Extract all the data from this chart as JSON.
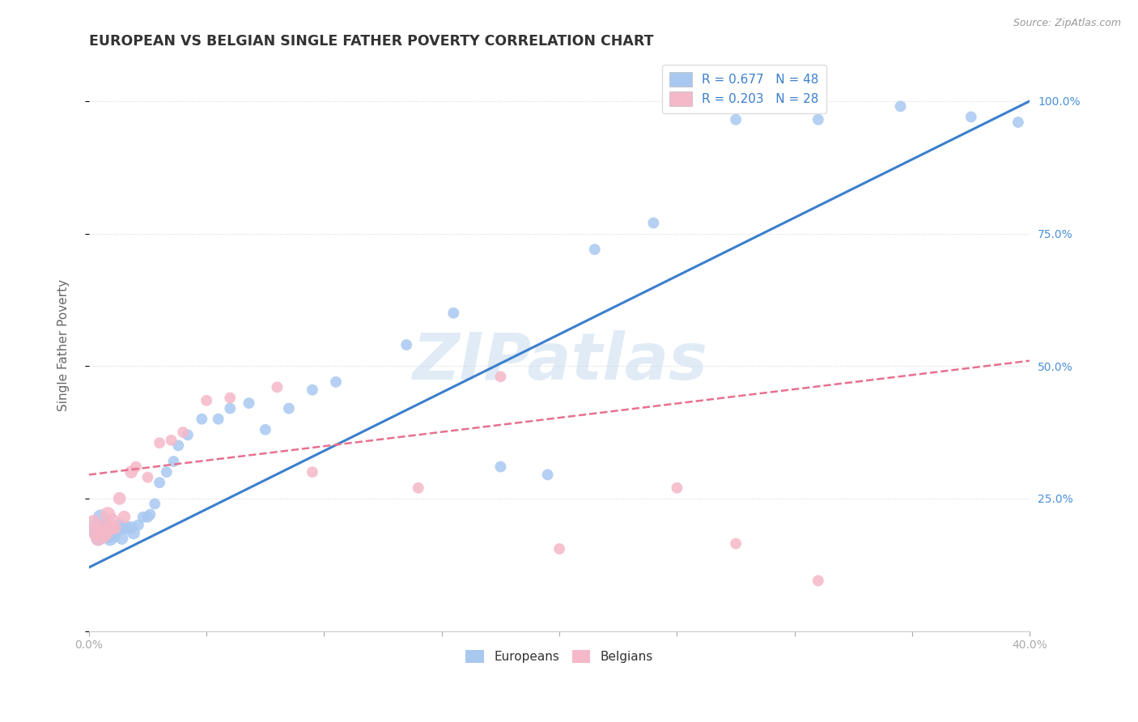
{
  "title": "EUROPEAN VS BELGIAN SINGLE FATHER POVERTY CORRELATION CHART",
  "source": "Source: ZipAtlas.com",
  "ylabel": "Single Father Poverty",
  "ytick_vals": [
    0.0,
    0.25,
    0.5,
    0.75,
    1.0
  ],
  "ytick_labels": [
    "",
    "25.0%",
    "50.0%",
    "75.0%",
    "100.0%"
  ],
  "xtick_vals": [
    0.0,
    0.05,
    0.1,
    0.15,
    0.2,
    0.25,
    0.3,
    0.35,
    0.4
  ],
  "xtick_labels": [
    "0.0%",
    "",
    "",
    "",
    "",
    "",
    "",
    "",
    "40.0%"
  ],
  "xlim": [
    0.0,
    0.4
  ],
  "ylim": [
    0.0,
    1.08
  ],
  "european_R": 0.677,
  "european_N": 48,
  "belgian_R": 0.203,
  "belgian_N": 28,
  "european_color": "#A8C8F0",
  "belgian_color": "#F5B8C8",
  "european_line_color": "#3B7FCC",
  "belgian_line_color": "#E87090",
  "legend_label_european": "R = 0.677   N = 48",
  "legend_label_belgian": "R = 0.203   N = 28",
  "legend_bottom_european": "Europeans",
  "legend_bottom_belgian": "Belgians",
  "european_x": [
    0.002,
    0.003,
    0.004,
    0.005,
    0.005,
    0.006,
    0.006,
    0.007,
    0.007,
    0.008,
    0.009,
    0.01,
    0.011,
    0.013,
    0.014,
    0.015,
    0.016,
    0.018,
    0.019,
    0.021,
    0.023,
    0.025,
    0.026,
    0.028,
    0.03,
    0.033,
    0.036,
    0.038,
    0.042,
    0.048,
    0.055,
    0.06,
    0.068,
    0.075,
    0.085,
    0.095,
    0.105,
    0.135,
    0.155,
    0.175,
    0.195,
    0.215,
    0.24,
    0.275,
    0.31,
    0.345,
    0.375,
    0.395
  ],
  "european_y": [
    0.195,
    0.185,
    0.175,
    0.215,
    0.195,
    0.195,
    0.185,
    0.195,
    0.18,
    0.18,
    0.175,
    0.195,
    0.18,
    0.2,
    0.175,
    0.195,
    0.195,
    0.195,
    0.185,
    0.2,
    0.215,
    0.215,
    0.22,
    0.24,
    0.28,
    0.3,
    0.32,
    0.35,
    0.37,
    0.4,
    0.4,
    0.42,
    0.43,
    0.38,
    0.42,
    0.455,
    0.47,
    0.54,
    0.6,
    0.31,
    0.295,
    0.72,
    0.77,
    0.965,
    0.965,
    0.99,
    0.97,
    0.96
  ],
  "belgian_x": [
    0.002,
    0.003,
    0.004,
    0.005,
    0.006,
    0.007,
    0.008,
    0.009,
    0.01,
    0.011,
    0.013,
    0.015,
    0.018,
    0.02,
    0.025,
    0.03,
    0.035,
    0.04,
    0.05,
    0.06,
    0.08,
    0.095,
    0.14,
    0.175,
    0.2,
    0.25,
    0.275,
    0.31
  ],
  "belgian_y": [
    0.205,
    0.185,
    0.175,
    0.195,
    0.18,
    0.185,
    0.22,
    0.195,
    0.21,
    0.195,
    0.25,
    0.215,
    0.3,
    0.31,
    0.29,
    0.355,
    0.36,
    0.375,
    0.435,
    0.44,
    0.46,
    0.3,
    0.27,
    0.48,
    0.155,
    0.27,
    0.165,
    0.095
  ],
  "eu_line_x0": 0.0,
  "eu_line_y0": 0.12,
  "eu_line_x1": 0.4,
  "eu_line_y1": 1.0,
  "be_line_x0": 0.0,
  "be_line_y0": 0.295,
  "be_line_x1": 0.4,
  "be_line_y1": 0.51,
  "watermark": "ZIPatlas",
  "background_color": "#FFFFFF",
  "grid_color": "#D8D8D8",
  "title_color": "#333333",
  "axis_label_color": "#666666",
  "right_yaxis_color": "#4A90D9"
}
